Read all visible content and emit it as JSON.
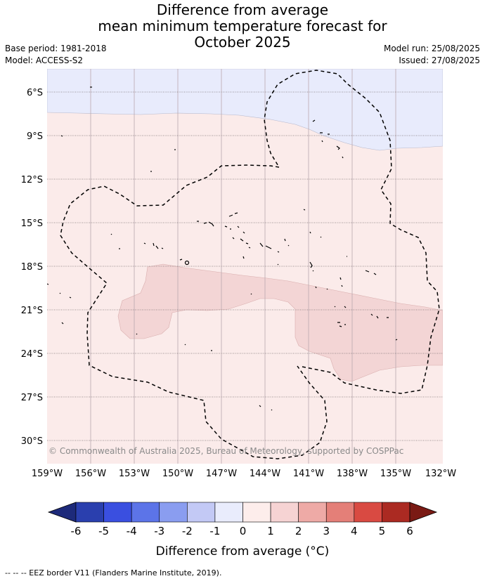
{
  "title": {
    "line1": "Difference from average",
    "line2": "mean minimum temperature forecast for",
    "line3": "October 2025"
  },
  "meta": {
    "base_period": "Base period: 1981-2018",
    "model": "Model: ACCESS-S2",
    "model_run": "Model run: 25/08/2025",
    "issued": "Issued: 27/08/2025"
  },
  "map": {
    "lat_labels": [
      "6°S",
      "9°S",
      "12°S",
      "15°S",
      "18°S",
      "21°S",
      "24°S",
      "27°S",
      "30°S"
    ],
    "lon_labels": [
      "159°W",
      "156°W",
      "153°W",
      "150°W",
      "147°W",
      "144°W",
      "141°W",
      "138°W",
      "135°W",
      "132°W"
    ],
    "copyright": "© Commonwealth of Australia 2025, Bureau of Meteorology, supported by COSPPac"
  },
  "colorbar": {
    "ticks": [
      "-6",
      "-5",
      "-4",
      "-3",
      "-2",
      "-1",
      "0",
      "1",
      "2",
      "3",
      "4",
      "5",
      "6"
    ],
    "colors": [
      "#2a3fae",
      "#3a4fe0",
      "#5c74e8",
      "#8a9df0",
      "#c3c9f5",
      "#e9ecfc",
      "#fdedeb",
      "#f6d3d3",
      "#eeaaa6",
      "#e47f78",
      "#d94a42",
      "#ab2a22"
    ],
    "under_color": "#1d2a7a",
    "over_color": "#7a1a14",
    "label": "Difference from average (°C)"
  },
  "footer": {
    "eez_note": "--  --  -- EEZ border V11 (Flanders Marine Institute, 2019)."
  }
}
